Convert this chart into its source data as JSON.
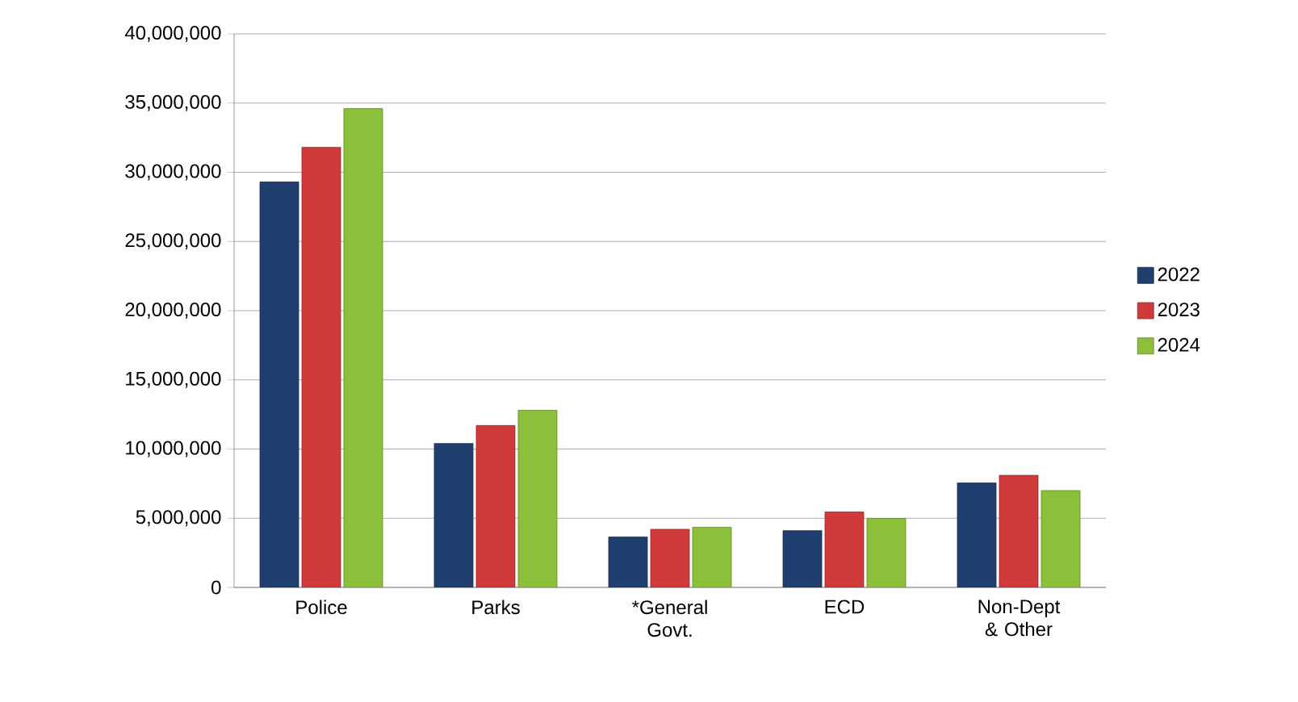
{
  "chart_data": {
    "type": "bar",
    "categories": [
      "Police",
      "Parks",
      "*General Govt.",
      "ECD",
      "Non-Dept & Other"
    ],
    "series": [
      {
        "name": "2022",
        "color": "#1f3f6e",
        "values": [
          29300000,
          10400000,
          3650000,
          4100000,
          7550000
        ]
      },
      {
        "name": "2023",
        "color": "#d03a3a",
        "values": [
          31800000,
          11700000,
          4200000,
          5450000,
          8100000
        ]
      },
      {
        "name": "2024",
        "color": "#8cbf3a",
        "values": [
          34600000,
          12800000,
          4350000,
          4980000,
          7000000
        ]
      }
    ],
    "ylim": [
      0,
      40000000
    ],
    "yticks": [
      {
        "value": 0,
        "label": "0"
      },
      {
        "value": 5000000,
        "label": "5,000,000"
      },
      {
        "value": 10000000,
        "label": "10,000,000"
      },
      {
        "value": 15000000,
        "label": "15,000,000"
      },
      {
        "value": 20000000,
        "label": "20,000,000"
      },
      {
        "value": 25000000,
        "label": "25,000,000"
      },
      {
        "value": 30000000,
        "label": "30,000,000"
      },
      {
        "value": 35000000,
        "label": "35,000,000"
      },
      {
        "value": 40000000,
        "label": "40,000,000"
      }
    ],
    "grid": "y",
    "legend": "right"
  }
}
